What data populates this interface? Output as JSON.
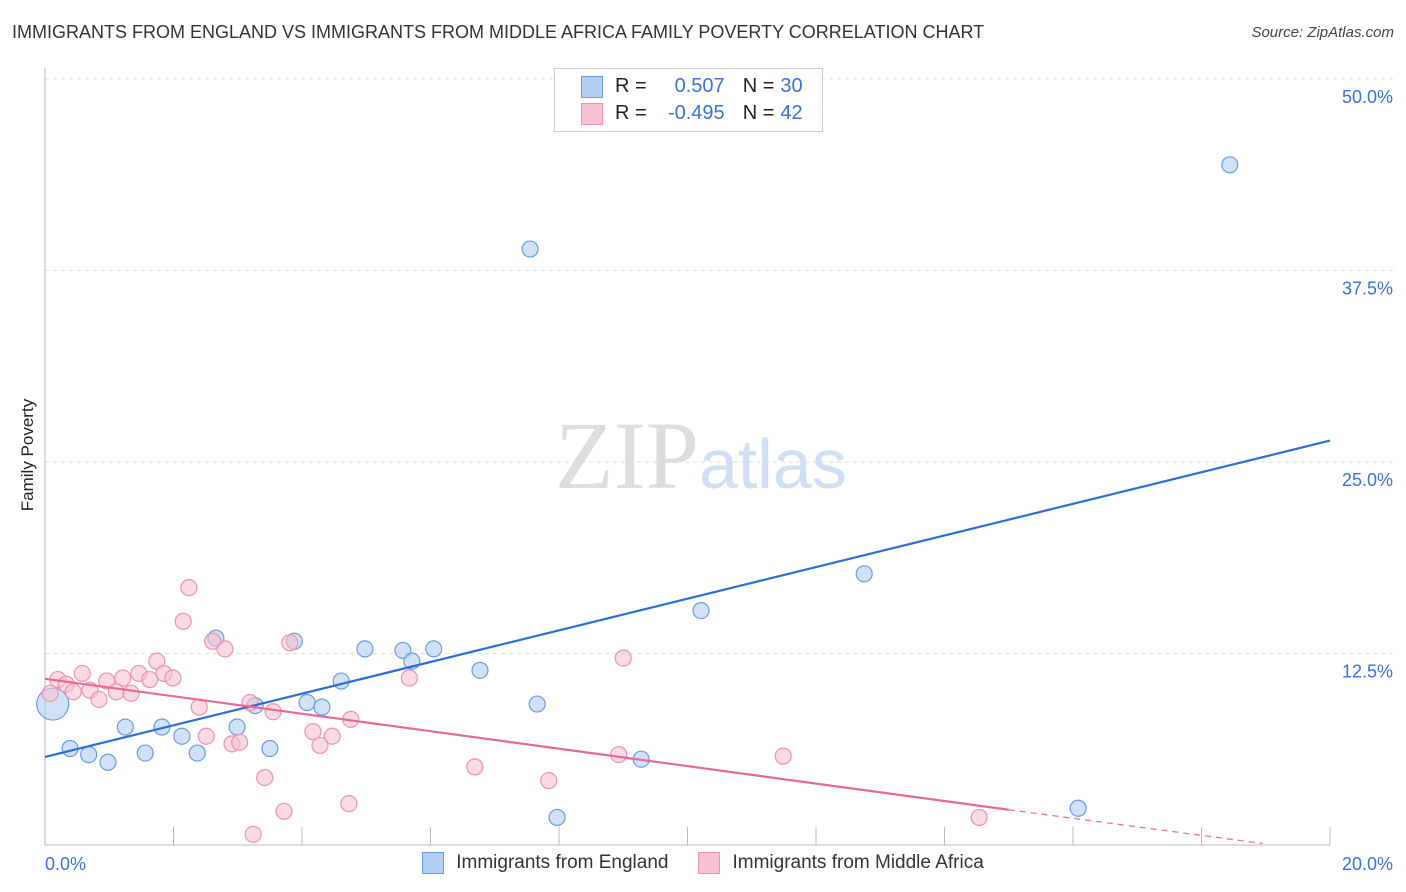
{
  "title": "IMMIGRANTS FROM ENGLAND VS IMMIGRANTS FROM MIDDLE AFRICA FAMILY POVERTY CORRELATION CHART",
  "source": "Source: ZipAtlas.com",
  "watermark": {
    "zip": "ZIP",
    "atlas": "atlas"
  },
  "legend": {
    "r_label": "R =",
    "n_label": "N =",
    "rows": [
      {
        "r": "0.507",
        "n": "30"
      },
      {
        "r": "-0.495",
        "n": "42"
      }
    ]
  },
  "colors": {
    "blue_fill": "#b3cff3",
    "blue_stroke": "#6a9ce0",
    "blue_line": "#2a6fd6",
    "pink_fill": "#f7c2d2",
    "pink_stroke": "#ee93b0",
    "pink_line": "#e8689a",
    "tick": "#3a72d6"
  },
  "chart_data": {
    "type": "scatter",
    "title": "IMMIGRANTS FROM ENGLAND VS IMMIGRANTS FROM MIDDLE AFRICA FAMILY POVERTY CORRELATION CHART",
    "xlabel": "",
    "ylabel": "Family Poverty",
    "xlim": [
      0,
      20
    ],
    "ylim": [
      0,
      50
    ],
    "x_tick_labels": [
      "0.0%",
      "20.0%"
    ],
    "y_ticks": [
      12.5,
      25,
      37.5,
      50
    ],
    "y_tick_labels": [
      "12.5%",
      "25.0%",
      "37.5%",
      "50.0%"
    ],
    "legend_position": "bottom",
    "series": [
      {
        "name": "Immigrants from England",
        "r": 0.507,
        "n": 30,
        "trend": {
          "x": [
            0,
            20
          ],
          "y": [
            5.75,
            26.4
          ]
        },
        "points": [
          [
            18.44,
            44.4
          ],
          [
            7.55,
            38.9
          ],
          [
            12.75,
            17.7
          ],
          [
            10.21,
            15.3
          ],
          [
            2.66,
            13.5
          ],
          [
            3.88,
            13.3
          ],
          [
            4.98,
            12.8
          ],
          [
            5.57,
            12.7
          ],
          [
            6.05,
            12.8
          ],
          [
            5.71,
            12.0
          ],
          [
            6.77,
            11.4
          ],
          [
            4.61,
            10.7
          ],
          [
            4.08,
            9.3
          ],
          [
            4.31,
            9.0
          ],
          [
            7.66,
            9.2
          ],
          [
            3.27,
            9.1
          ],
          [
            0.12,
            9.2
          ],
          [
            1.25,
            7.7
          ],
          [
            1.82,
            7.7
          ],
          [
            2.99,
            7.7
          ],
          [
            2.13,
            7.1
          ],
          [
            0.39,
            6.3
          ],
          [
            0.68,
            5.9
          ],
          [
            1.56,
            6.0
          ],
          [
            2.37,
            6.0
          ],
          [
            3.5,
            6.3
          ],
          [
            0.98,
            5.4
          ],
          [
            9.28,
            5.6
          ],
          [
            16.08,
            2.4
          ],
          [
            7.97,
            1.8
          ]
        ]
      },
      {
        "name": "Immigrants from Middle Africa",
        "r": -0.495,
        "n": 42,
        "trend": {
          "x": [
            0,
            15
          ],
          "y": [
            10.85,
            2.3
          ],
          "dashed_to": [
            18.95,
            0.1
          ]
        },
        "points": [
          [
            2.24,
            16.8
          ],
          [
            2.15,
            14.6
          ],
          [
            2.61,
            13.3
          ],
          [
            2.8,
            12.8
          ],
          [
            3.81,
            13.2
          ],
          [
            1.74,
            12.0
          ],
          [
            9.0,
            12.2
          ],
          [
            0.58,
            11.2
          ],
          [
            1.46,
            11.2
          ],
          [
            1.85,
            11.2
          ],
          [
            1.99,
            10.9
          ],
          [
            0.2,
            10.8
          ],
          [
            0.33,
            10.5
          ],
          [
            1.21,
            10.9
          ],
          [
            0.96,
            10.7
          ],
          [
            1.63,
            10.8
          ],
          [
            5.67,
            10.9
          ],
          [
            0.44,
            10.0
          ],
          [
            0.7,
            10.1
          ],
          [
            1.11,
            10.0
          ],
          [
            1.34,
            9.9
          ],
          [
            0.84,
            9.5
          ],
          [
            3.19,
            9.3
          ],
          [
            2.4,
            9.0
          ],
          [
            3.55,
            8.7
          ],
          [
            4.76,
            8.2
          ],
          [
            4.17,
            7.4
          ],
          [
            4.47,
            7.1
          ],
          [
            2.51,
            7.1
          ],
          [
            2.91,
            6.6
          ],
          [
            3.03,
            6.7
          ],
          [
            4.28,
            6.5
          ],
          [
            8.93,
            5.9
          ],
          [
            11.49,
            5.8
          ],
          [
            6.69,
            5.1
          ],
          [
            3.42,
            4.4
          ],
          [
            7.84,
            4.2
          ],
          [
            4.73,
            2.7
          ],
          [
            3.72,
            2.2
          ],
          [
            14.54,
            1.8
          ],
          [
            3.24,
            0.7
          ],
          [
            0.08,
            9.9
          ]
        ]
      }
    ]
  }
}
